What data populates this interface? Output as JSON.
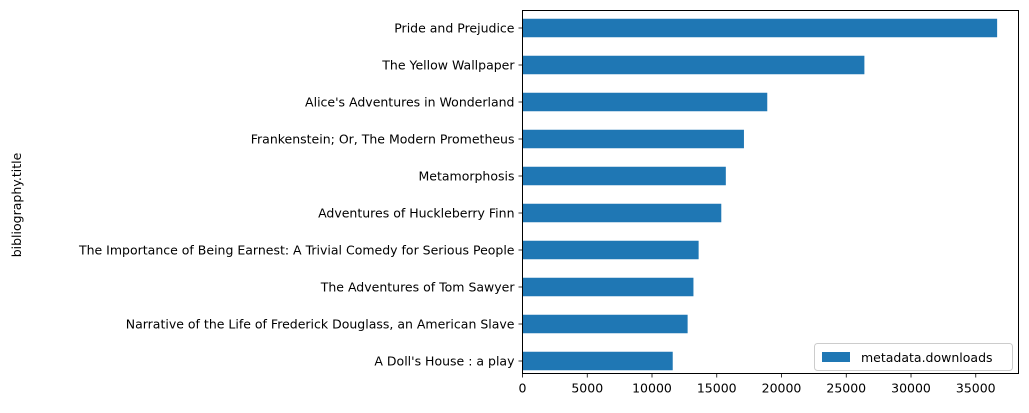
{
  "chart_data": {
    "type": "bar",
    "orientation": "horizontal",
    "ylabel": "bibliography.title",
    "xlabel": "",
    "xlim": [
      0,
      38300
    ],
    "xticks": [
      0,
      5000,
      10000,
      15000,
      20000,
      25000,
      30000,
      35000
    ],
    "categories": [
      "Pride and Prejudice",
      "The Yellow Wallpaper",
      "Alice's Adventures in Wonderland",
      "Frankenstein; Or, The Modern Prometheus",
      "Metamorphosis",
      "Adventures of Huckleberry Finn",
      "The Importance of Being Earnest: A Trivial Comedy for Serious People",
      "The Adventures of Tom Sawyer",
      "Narrative of the Life of Frederick Douglass, an American Slave",
      "A Doll's House : a play"
    ],
    "series": [
      {
        "name": "metadata.downloads",
        "color": "#1f77b4",
        "values": [
          36650,
          26400,
          18900,
          17100,
          15700,
          15350,
          13600,
          13200,
          12750,
          11600
        ]
      }
    ],
    "legend_position": "lower-right",
    "grid": false
  }
}
